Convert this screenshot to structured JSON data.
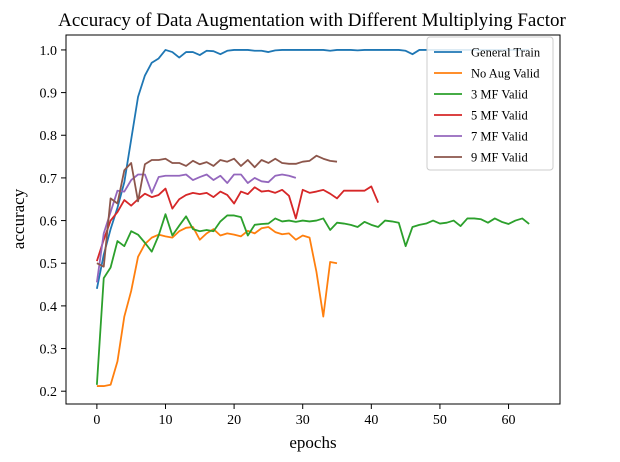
{
  "chart_data": {
    "type": "line",
    "title": "Accuracy of Data Augmentation with Different Multiplying Factor",
    "xlabel": "epochs",
    "ylabel": "accuracy",
    "xlim": [
      -4.5,
      67.5
    ],
    "ylim": [
      0.17,
      1.035
    ],
    "xticks": [
      0,
      10,
      20,
      30,
      40,
      50,
      60
    ],
    "yticks": [
      0.2,
      0.3,
      0.4,
      0.5,
      0.6,
      0.7,
      0.8,
      0.9,
      1.0
    ],
    "ytick_labels": [
      "0.2",
      "0.3",
      "0.4",
      "0.5",
      "0.6",
      "0.7",
      "0.8",
      "0.9",
      "1.0"
    ],
    "grid": false,
    "legend_position": "top-right",
    "series": [
      {
        "name": "General Train",
        "color": "#1f77b4",
        "values": [
          0.44,
          0.52,
          0.58,
          0.63,
          0.69,
          0.79,
          0.89,
          0.94,
          0.97,
          0.98,
          1.0,
          0.995,
          0.982,
          0.995,
          0.995,
          0.988,
          0.998,
          0.997,
          0.99,
          0.998,
          1.0,
          1.0,
          1.0,
          0.998,
          0.998,
          0.995,
          0.999,
          1.0,
          1.0,
          1.0,
          1.0,
          1.0,
          1.0,
          1.0,
          0.998,
          1.0,
          1.0,
          1.0,
          0.999,
          1.0,
          1.0,
          1.0,
          1.0,
          1.0,
          1.0,
          0.998,
          0.99,
          1.0,
          1.0,
          1.0,
          1.0,
          1.0,
          1.0,
          1.0,
          1.0,
          1.0,
          1.0,
          1.0,
          1.0,
          1.0,
          1.0,
          1.0,
          1.0,
          1.0
        ]
      },
      {
        "name": "No Aug Valid",
        "color": "#ff7f0e",
        "values": [
          0.212,
          0.212,
          0.215,
          0.27,
          0.375,
          0.435,
          0.515,
          0.545,
          0.56,
          0.567,
          0.563,
          0.56,
          0.575,
          0.583,
          0.585,
          0.555,
          0.57,
          0.58,
          0.565,
          0.57,
          0.567,
          0.563,
          0.576,
          0.57,
          0.582,
          0.585,
          0.573,
          0.568,
          0.57,
          0.555,
          0.565,
          0.56,
          0.48,
          0.375,
          0.503,
          0.5
        ]
      },
      {
        "name": "3 MF Valid",
        "color": "#2ca02c",
        "values": [
          0.215,
          0.465,
          0.49,
          0.552,
          0.54,
          0.575,
          0.567,
          0.548,
          0.527,
          0.565,
          0.615,
          0.565,
          0.588,
          0.61,
          0.58,
          0.575,
          0.578,
          0.575,
          0.598,
          0.612,
          0.612,
          0.608,
          0.565,
          0.59,
          0.592,
          0.593,
          0.605,
          0.598,
          0.6,
          0.597,
          0.6,
          0.598,
          0.6,
          0.605,
          0.578,
          0.595,
          0.593,
          0.59,
          0.585,
          0.597,
          0.59,
          0.585,
          0.6,
          0.598,
          0.595,
          0.54,
          0.585,
          0.59,
          0.593,
          0.6,
          0.593,
          0.595,
          0.6,
          0.587,
          0.605,
          0.605,
          0.603,
          0.595,
          0.605,
          0.597,
          0.592,
          0.6,
          0.605,
          0.592
        ]
      },
      {
        "name": "5 MF Valid",
        "color": "#d62728",
        "values": [
          0.505,
          0.555,
          0.6,
          0.62,
          0.648,
          0.635,
          0.65,
          0.663,
          0.655,
          0.66,
          0.675,
          0.628,
          0.65,
          0.66,
          0.665,
          0.662,
          0.665,
          0.655,
          0.668,
          0.66,
          0.64,
          0.668,
          0.662,
          0.678,
          0.668,
          0.67,
          0.665,
          0.672,
          0.658,
          0.605,
          0.672,
          0.665,
          0.668,
          0.672,
          0.663,
          0.652,
          0.67,
          0.67,
          0.67,
          0.67,
          0.68,
          0.642
        ]
      },
      {
        "name": "7 MF Valid",
        "color": "#9467bd",
        "values": [
          0.455,
          0.57,
          0.62,
          0.67,
          0.668,
          0.695,
          0.708,
          0.708,
          0.665,
          0.702,
          0.705,
          0.705,
          0.705,
          0.708,
          0.695,
          0.702,
          0.708,
          0.695,
          0.705,
          0.688,
          0.708,
          0.708,
          0.688,
          0.7,
          0.692,
          0.69,
          0.705,
          0.708,
          0.705,
          0.7
        ]
      },
      {
        "name": "9 MF Valid",
        "color": "#8c564b",
        "values": [
          0.5,
          0.492,
          0.652,
          0.64,
          0.718,
          0.735,
          0.645,
          0.732,
          0.742,
          0.742,
          0.745,
          0.735,
          0.735,
          0.728,
          0.74,
          0.732,
          0.737,
          0.728,
          0.742,
          0.738,
          0.745,
          0.728,
          0.742,
          0.725,
          0.742,
          0.735,
          0.745,
          0.735,
          0.733,
          0.733,
          0.738,
          0.74,
          0.752,
          0.745,
          0.74,
          0.738
        ]
      }
    ]
  }
}
